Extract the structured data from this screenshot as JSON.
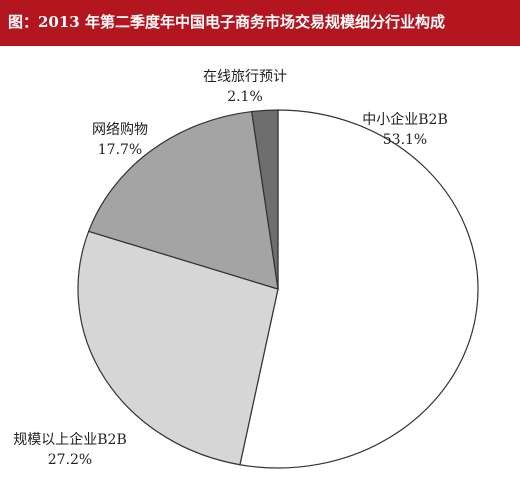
{
  "chart_data": {
    "type": "pie",
    "title": "图：2013 年第二季度年中国电子商务市场交易规模细分行业构成",
    "categories": [
      "中小企业B2B",
      "规模以上企业B2B",
      "网络购物",
      "在线旅行预计"
    ],
    "values": [
      53.1,
      27.2,
      17.7,
      2.1
    ],
    "value_labels": [
      "53.1%",
      "27.2%",
      "17.7%",
      "2.1%"
    ],
    "colors": [
      "#ffffff",
      "#d6d6d6",
      "#a4a4a4",
      "#6e6e6e"
    ]
  }
}
